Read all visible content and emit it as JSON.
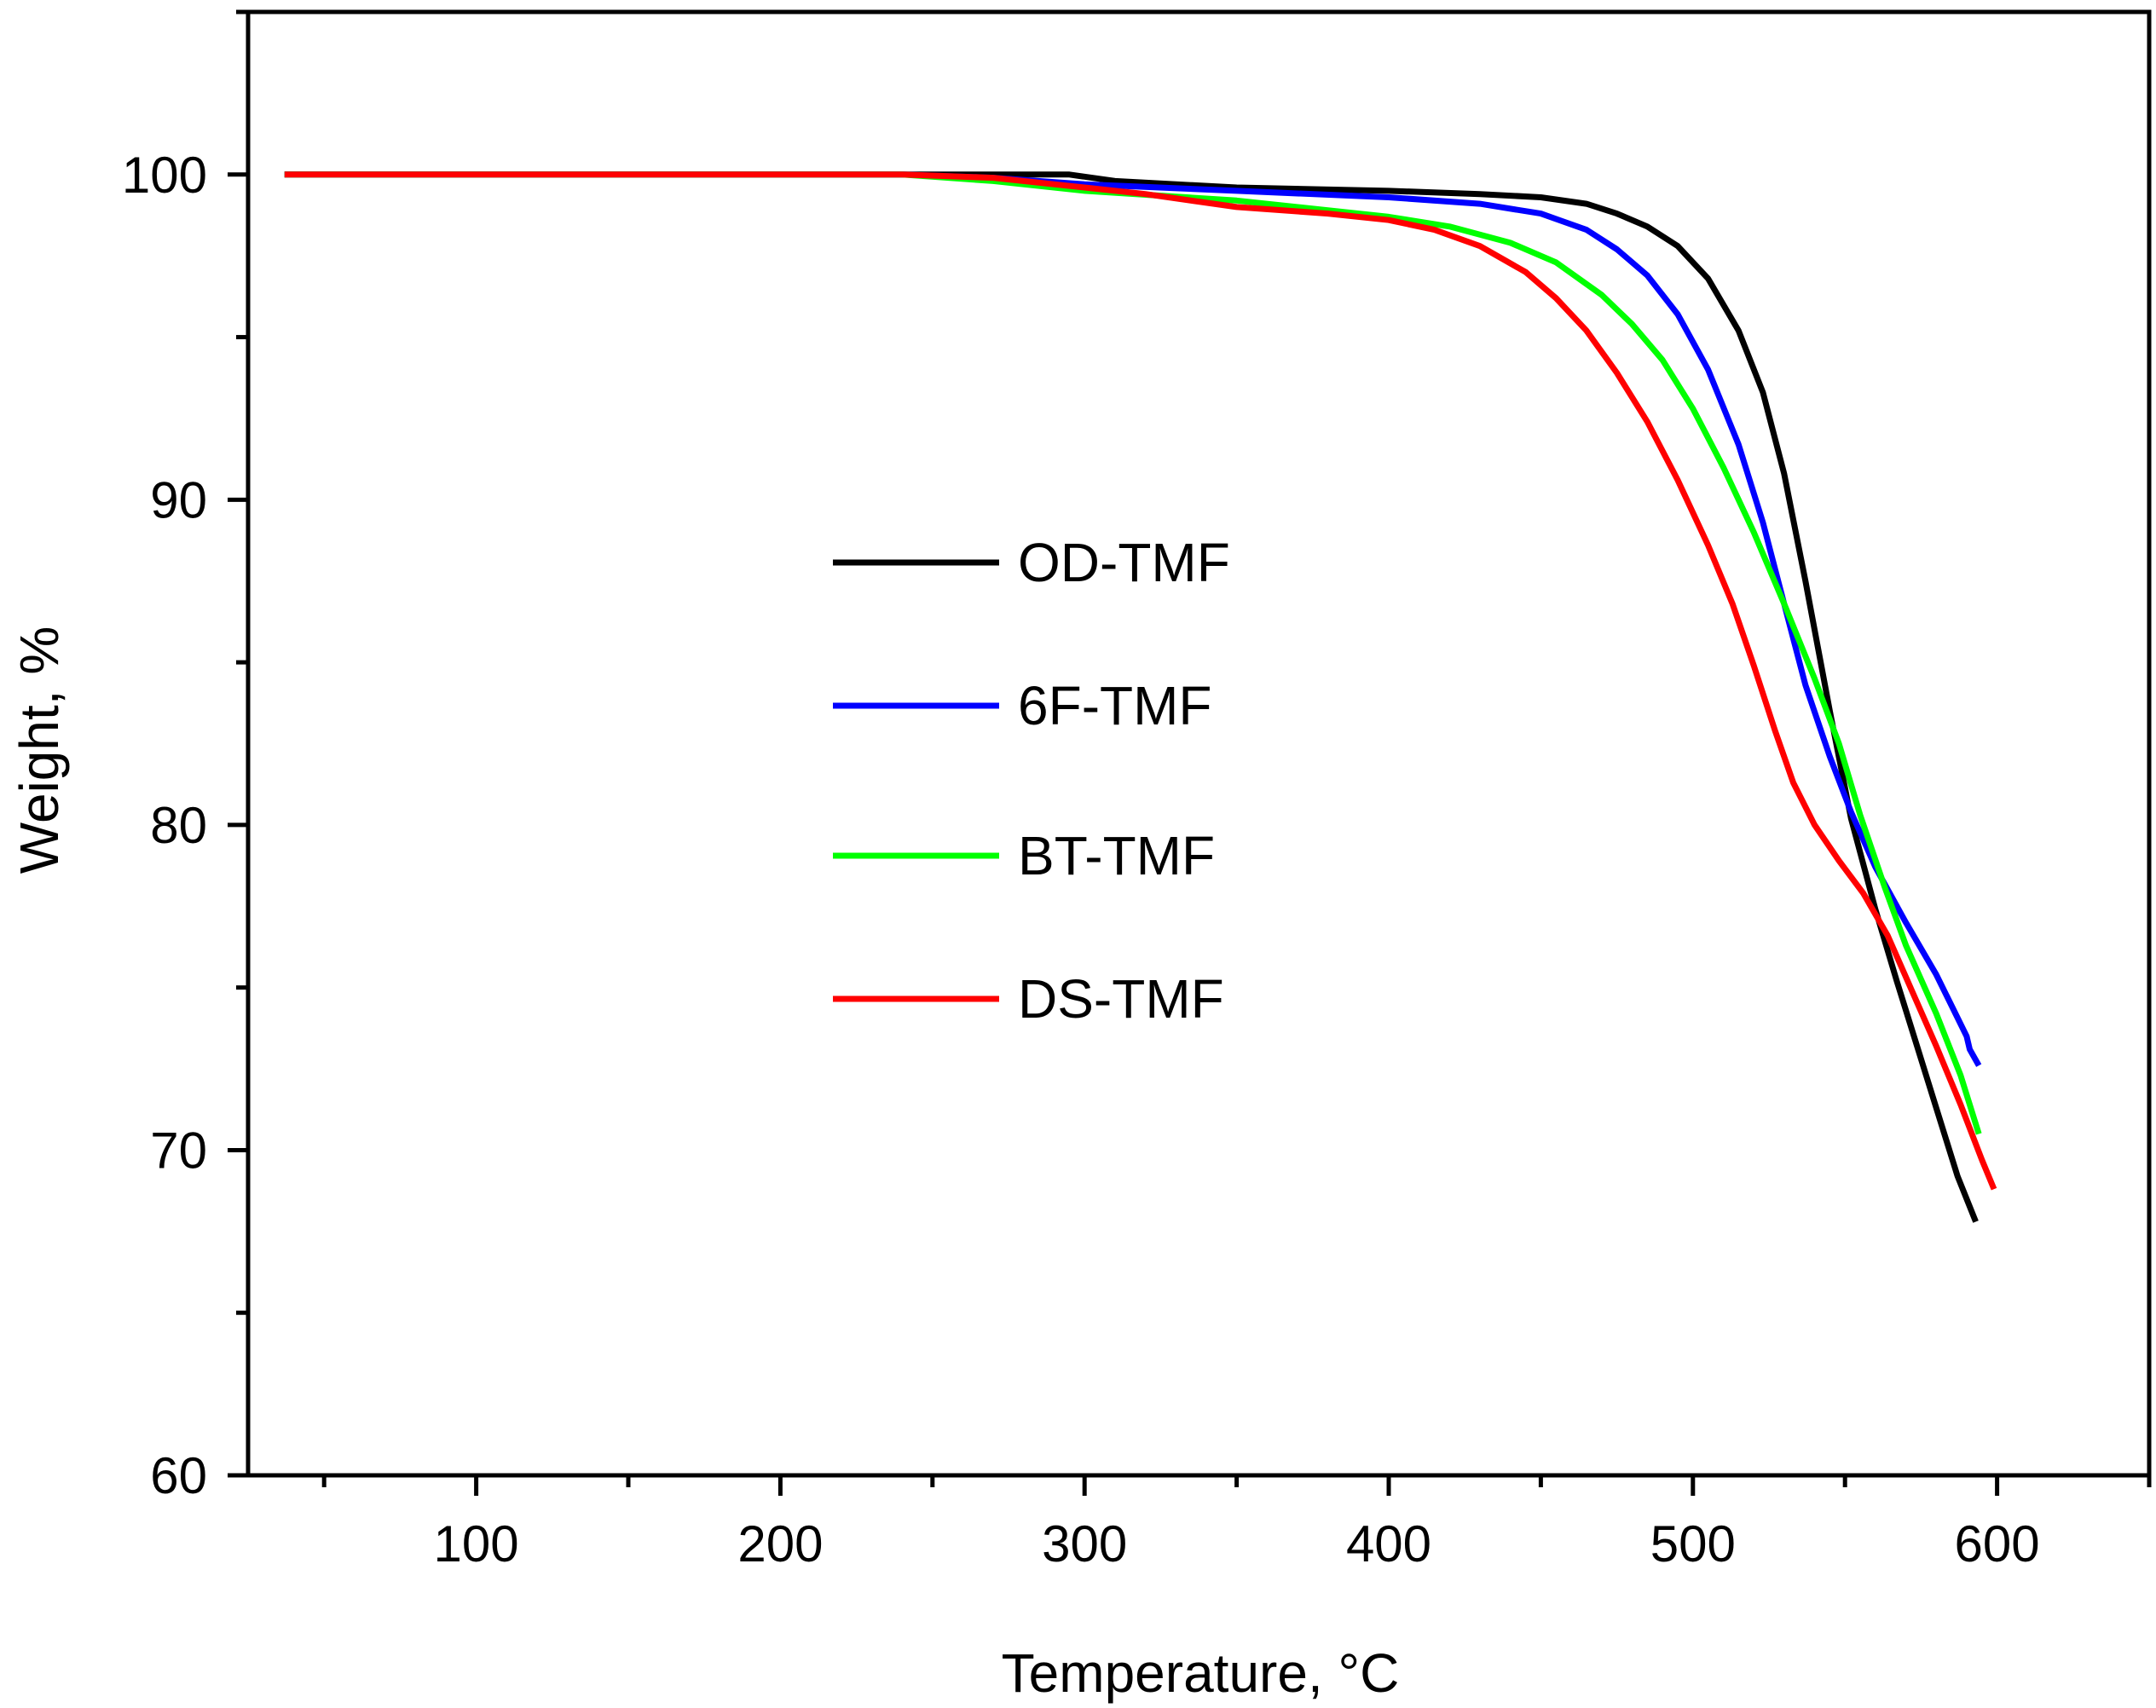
{
  "chart_data": {
    "type": "line",
    "title": "",
    "xlabel": "Temperature, °C",
    "ylabel": "Weight, %",
    "xlim": [
      25,
      650
    ],
    "ylim": [
      60,
      105
    ],
    "x_ticks": [
      100,
      200,
      300,
      400,
      500,
      600
    ],
    "x_minor_ticks": [
      50,
      150,
      250,
      350,
      450,
      550,
      650
    ],
    "y_ticks": [
      60,
      70,
      80,
      90,
      100
    ],
    "y_minor_ticks": [
      65,
      75,
      85,
      95,
      105
    ],
    "x_tick_labels": [
      "100",
      "200",
      "300",
      "400",
      "500",
      "600"
    ],
    "y_tick_labels": [
      "60",
      "70",
      "80",
      "90",
      "100"
    ],
    "legend_position": "center",
    "series": [
      {
        "name": "OD-TMF",
        "color": "#000000",
        "points": [
          [
            37,
            100
          ],
          [
            100,
            100
          ],
          [
            200,
            100
          ],
          [
            270,
            100
          ],
          [
            295,
            100
          ],
          [
            310,
            99.8
          ],
          [
            350,
            99.6
          ],
          [
            400,
            99.5
          ],
          [
            430,
            99.4
          ],
          [
            450,
            99.3
          ],
          [
            465,
            99.1
          ],
          [
            475,
            98.8
          ],
          [
            485,
            98.4
          ],
          [
            495,
            97.8
          ],
          [
            505,
            96.8
          ],
          [
            515,
            95.2
          ],
          [
            523,
            93.3
          ],
          [
            530,
            90.8
          ],
          [
            537,
            87.5
          ],
          [
            545,
            83.5
          ],
          [
            552,
            80.2
          ],
          [
            560,
            77.4
          ],
          [
            567,
            75.2
          ],
          [
            573,
            73.4
          ],
          [
            580,
            71.3
          ],
          [
            587,
            69.2
          ],
          [
            593,
            67.8
          ]
        ]
      },
      {
        "name": "6F-TMF",
        "color": "#0000ff",
        "points": [
          [
            37,
            100
          ],
          [
            200,
            100
          ],
          [
            240,
            100
          ],
          [
            270,
            99.9
          ],
          [
            300,
            99.7
          ],
          [
            350,
            99.5
          ],
          [
            400,
            99.3
          ],
          [
            430,
            99.1
          ],
          [
            450,
            98.8
          ],
          [
            465,
            98.3
          ],
          [
            475,
            97.7
          ],
          [
            485,
            96.9
          ],
          [
            495,
            95.7
          ],
          [
            505,
            94.0
          ],
          [
            515,
            91.7
          ],
          [
            523,
            89.3
          ],
          [
            530,
            86.8
          ],
          [
            537,
            84.3
          ],
          [
            545,
            82.1
          ],
          [
            552,
            80.4
          ],
          [
            560,
            78.7
          ],
          [
            570,
            77.0
          ],
          [
            580,
            75.4
          ],
          [
            590,
            73.5
          ],
          [
            591,
            73.1
          ],
          [
            594,
            72.6
          ]
        ]
      },
      {
        "name": "BT-TMF",
        "color": "#00ff00",
        "points": [
          [
            37,
            100
          ],
          [
            200,
            100
          ],
          [
            240,
            100
          ],
          [
            270,
            99.8
          ],
          [
            300,
            99.5
          ],
          [
            350,
            99.2
          ],
          [
            400,
            98.7
          ],
          [
            420,
            98.4
          ],
          [
            440,
            97.9
          ],
          [
            455,
            97.3
          ],
          [
            470,
            96.3
          ],
          [
            480,
            95.4
          ],
          [
            490,
            94.3
          ],
          [
            500,
            92.8
          ],
          [
            510,
            91.0
          ],
          [
            520,
            89.0
          ],
          [
            530,
            86.8
          ],
          [
            540,
            84.5
          ],
          [
            548,
            82.5
          ],
          [
            555,
            80.3
          ],
          [
            563,
            78.1
          ],
          [
            570,
            76.3
          ],
          [
            580,
            74.2
          ],
          [
            588,
            72.3
          ],
          [
            594,
            70.5
          ]
        ]
      },
      {
        "name": "DS-TMF",
        "color": "#ff0000",
        "points": [
          [
            37,
            100
          ],
          [
            200,
            100
          ],
          [
            240,
            100
          ],
          [
            270,
            99.9
          ],
          [
            300,
            99.6
          ],
          [
            320,
            99.4
          ],
          [
            350,
            99.0
          ],
          [
            380,
            98.8
          ],
          [
            400,
            98.6
          ],
          [
            415,
            98.3
          ],
          [
            430,
            97.8
          ],
          [
            445,
            97.0
          ],
          [
            455,
            96.2
          ],
          [
            465,
            95.2
          ],
          [
            475,
            93.9
          ],
          [
            485,
            92.4
          ],
          [
            495,
            90.6
          ],
          [
            505,
            88.6
          ],
          [
            513,
            86.8
          ],
          [
            520,
            84.9
          ],
          [
            527,
            82.9
          ],
          [
            533,
            81.3
          ],
          [
            540,
            80.0
          ],
          [
            548,
            78.9
          ],
          [
            556,
            77.9
          ],
          [
            564,
            76.6
          ],
          [
            572,
            74.9
          ],
          [
            580,
            73.2
          ],
          [
            588,
            71.4
          ],
          [
            595,
            69.7
          ],
          [
            599,
            68.8
          ]
        ]
      }
    ]
  }
}
